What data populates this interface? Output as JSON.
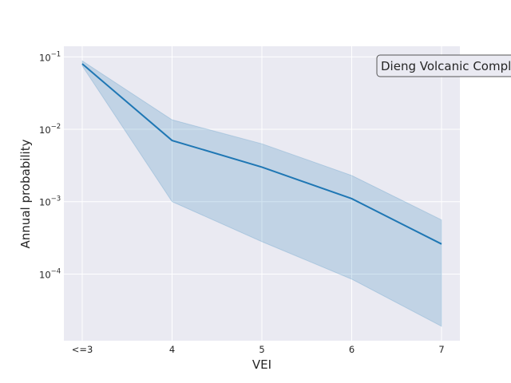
{
  "chart_data": {
    "type": "line",
    "title": "",
    "xlabel": "VEI",
    "ylabel": "Annual probability",
    "categories": [
      "<=3",
      "4",
      "5",
      "6",
      "7"
    ],
    "series": [
      {
        "values": [
          0.08,
          0.007,
          0.003,
          0.0011,
          0.00026
        ],
        "lower": [
          0.075,
          0.001,
          0.00028,
          8.5e-05,
          1.9e-05
        ],
        "upper": [
          0.088,
          0.0135,
          0.0063,
          0.0023,
          0.00056
        ]
      }
    ],
    "yscale": "log",
    "ylim": [
      1.2e-05,
      0.14
    ],
    "yticks": [
      {
        "base": "10",
        "exp": "−1",
        "value": 0.1
      },
      {
        "base": "10",
        "exp": "−2",
        "value": 0.01
      },
      {
        "base": "10",
        "exp": "−3",
        "value": 0.001
      },
      {
        "base": "10",
        "exp": "−4",
        "value": 0.0001
      }
    ],
    "annotation": "Dieng Volcanic Complex",
    "grid": true,
    "colors": {
      "line": "#1f77b4",
      "band": "#1f77b4",
      "background": "#eaeaf2",
      "grid": "#ffffff"
    }
  }
}
